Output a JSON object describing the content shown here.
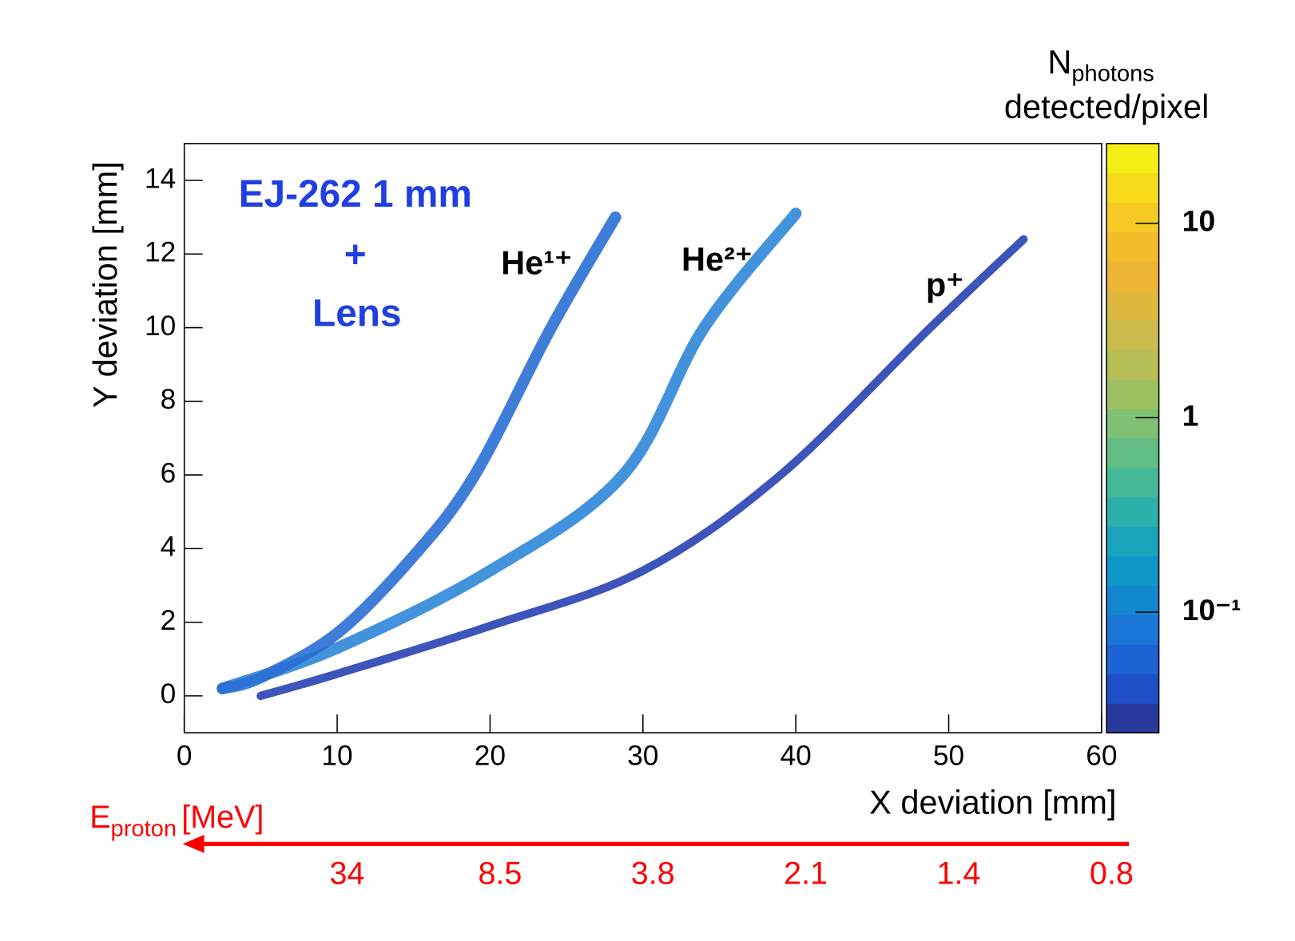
{
  "chart_data": {
    "type": "line",
    "xlabel": "X deviation [mm]",
    "ylabel": "Y deviation [mm]",
    "xlim": [
      0,
      60
    ],
    "ylim": [
      -1,
      15
    ],
    "xticks": [
      0,
      10,
      20,
      30,
      40,
      50,
      60
    ],
    "yticks": [
      0,
      2,
      4,
      6,
      8,
      10,
      12,
      14
    ],
    "annotations": [
      "EJ-262 1 mm",
      "+",
      "Lens"
    ],
    "series": [
      {
        "name": "He¹⁺",
        "color": "#2a6fd4",
        "x": [
          2.5,
          5,
          10,
          15,
          19,
          24,
          28.2
        ],
        "values": [
          0.2,
          0.5,
          1.7,
          3.8,
          6,
          10,
          13
        ]
      },
      {
        "name": "He²⁺",
        "color": "#2f86d8",
        "x": [
          2.5,
          10,
          20,
          28.7,
          34,
          40
        ],
        "values": [
          0.2,
          1.3,
          3.4,
          6,
          10,
          13.1
        ]
      },
      {
        "name": "p⁺",
        "color": "#2843b4",
        "x": [
          5,
          10,
          20,
          30,
          39,
          48.8,
          54.9
        ],
        "values": [
          0,
          0.6,
          1.9,
          3.4,
          6,
          10,
          12.4
        ]
      }
    ],
    "colorbar": {
      "title": "N",
      "title_sub": "photons",
      "title_line2": "detected/pixel",
      "log": true,
      "zlim": [
        0.024,
        25.7
      ],
      "zticks": [
        {
          "value": 0.1,
          "label": "10⁻¹"
        },
        1,
        10
      ],
      "colors": [
        "#2a3a9c",
        "#1f4fc8",
        "#1d63d6",
        "#1a75d6",
        "#1386d0",
        "#0f96c8",
        "#1aa4bc",
        "#2bb0aa",
        "#45b898",
        "#62bd85",
        "#80c072",
        "#9dc162",
        "#b6be56",
        "#cbbb4c",
        "#ddb83f",
        "#ecb534",
        "#f4bb2b",
        "#f6c924",
        "#f7db1b",
        "#f5ee14"
      ]
    },
    "energy_axis": {
      "label": "E",
      "label_sub": "proton",
      "unit": "[MeV]",
      "at_x": [
        10,
        20,
        30,
        40,
        50,
        60
      ],
      "values": [
        34,
        8.5,
        3.8,
        2.1,
        1.4,
        0.8
      ],
      "color": "#ff0000"
    }
  }
}
